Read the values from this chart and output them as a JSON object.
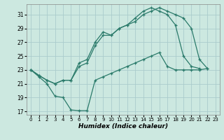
{
  "xlabel": "Humidex (Indice chaleur)",
  "background_color": "#cce8e0",
  "grid_color": "#aacccc",
  "line_color": "#2a7a6a",
  "xlim": [
    -0.5,
    23.5
  ],
  "ylim": [
    16.5,
    32.5
  ],
  "xticks": [
    0,
    1,
    2,
    3,
    4,
    5,
    6,
    7,
    8,
    9,
    10,
    11,
    12,
    13,
    14,
    15,
    16,
    17,
    18,
    19,
    20,
    21,
    22,
    23
  ],
  "yticks": [
    17,
    19,
    21,
    23,
    25,
    27,
    29,
    31
  ],
  "series": [
    {
      "x": [
        0,
        1,
        2,
        3,
        4,
        5,
        6,
        7,
        8,
        9,
        10,
        11,
        12,
        13,
        14,
        15,
        16,
        17,
        18,
        19,
        20,
        21,
        22,
        23
      ],
      "y": [
        23,
        22.2,
        21.5,
        21.0,
        21.5,
        21.5,
        24.0,
        24.5,
        27.0,
        28.5,
        28.0,
        29.0,
        29.5,
        30.5,
        31.5,
        32.0,
        31.5,
        31.0,
        29.5,
        25.0,
        23.5,
        23.2,
        null,
        null
      ]
    },
    {
      "x": [
        0,
        1,
        2,
        3,
        4,
        5,
        6,
        7,
        8,
        9,
        10,
        11,
        12,
        13,
        14,
        15,
        16,
        17,
        18,
        19,
        20,
        21,
        22,
        23
      ],
      "y": [
        23,
        22.2,
        21.5,
        21.0,
        21.5,
        21.5,
        23.5,
        24.0,
        26.5,
        28.0,
        28.0,
        29.0,
        29.5,
        30.0,
        31.0,
        31.5,
        32.0,
        31.5,
        31.0,
        30.5,
        29.0,
        24.5,
        23.2,
        null
      ]
    },
    {
      "x": [
        0,
        1,
        2,
        3,
        4,
        5,
        6,
        7,
        8,
        9,
        10,
        11,
        12,
        13,
        14,
        15,
        16,
        17,
        18,
        19,
        20,
        21,
        22,
        23
      ],
      "y": [
        23,
        22.0,
        21.0,
        19.2,
        19.0,
        17.2,
        17.1,
        17.1,
        21.5,
        22.0,
        22.5,
        23.0,
        23.5,
        24.0,
        24.5,
        25.0,
        25.5,
        23.5,
        23.0,
        23.0,
        23.0,
        23.0,
        23.2,
        null
      ]
    }
  ]
}
